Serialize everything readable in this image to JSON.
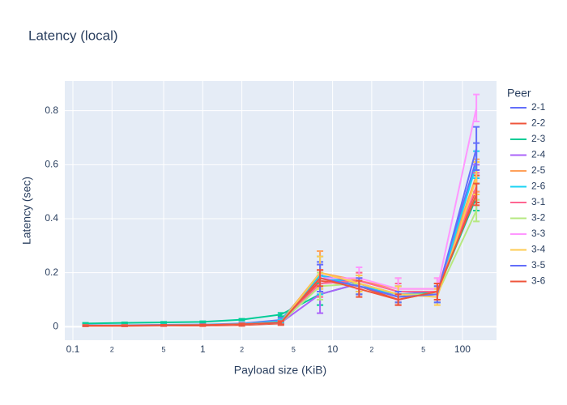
{
  "chart_data": {
    "type": "line",
    "title": "Latency (local)",
    "x_label": "Payload size (KiB)",
    "y_label": "Latency (sec)",
    "legend_title": "Peer",
    "x": [
      0.125,
      0.25,
      0.5,
      1,
      2,
      4,
      8,
      16,
      32,
      64,
      128
    ],
    "xlim": [
      0.0866,
      183
    ],
    "xlog": true,
    "xticks": [
      0.1,
      {
        "value": 0.2,
        "label": "2"
      },
      {
        "value": 0.5,
        "label": "5"
      },
      1,
      2,
      5,
      10,
      {
        "value": 20,
        "label": "2"
      },
      {
        "value": 50,
        "label": "5"
      },
      100
    ],
    "ylim": [
      -0.05,
      0.91
    ],
    "yticks": [
      0,
      0.2,
      0.4,
      0.6,
      0.8
    ],
    "grid": true,
    "series": [
      {
        "name": "2-1",
        "color": "#636efa",
        "values": [
          0.005,
          0.006,
          0.007,
          0.008,
          0.012,
          0.025,
          0.19,
          0.16,
          0.12,
          0.13,
          0.62
        ],
        "errors": [
          0.002,
          0.002,
          0.002,
          0.002,
          0.003,
          0.008,
          0.05,
          0.03,
          0.03,
          0.03,
          0.06
        ]
      },
      {
        "name": "2-2",
        "color": "#EF553B",
        "values": [
          0.003,
          0.003,
          0.004,
          0.004,
          0.006,
          0.012,
          0.17,
          0.15,
          0.1,
          0.13,
          0.51
        ],
        "errors": [
          0.002,
          0.002,
          0.002,
          0.002,
          0.003,
          0.006,
          0.04,
          0.03,
          0.02,
          0.03,
          0.05
        ]
      },
      {
        "name": "2-3",
        "color": "#00cc96",
        "values": [
          0.012,
          0.014,
          0.016,
          0.018,
          0.026,
          0.045,
          0.12,
          0.16,
          0.11,
          0.13,
          0.48
        ],
        "errors": [
          0.002,
          0.002,
          0.002,
          0.002,
          0.003,
          0.006,
          0.04,
          0.03,
          0.02,
          0.03,
          0.05
        ]
      },
      {
        "name": "2-4",
        "color": "#ab63fa",
        "values": [
          0.004,
          0.005,
          0.006,
          0.007,
          0.01,
          0.015,
          0.12,
          0.16,
          0.11,
          0.12,
          0.55
        ],
        "errors": [
          0.002,
          0.002,
          0.002,
          0.002,
          0.003,
          0.006,
          0.07,
          0.03,
          0.02,
          0.03,
          0.05
        ]
      },
      {
        "name": "2-5",
        "color": "#FFA15A",
        "values": [
          0.004,
          0.005,
          0.006,
          0.007,
          0.01,
          0.02,
          0.2,
          0.17,
          0.14,
          0.14,
          0.56
        ],
        "errors": [
          0.002,
          0.002,
          0.002,
          0.002,
          0.003,
          0.006,
          0.08,
          0.03,
          0.04,
          0.04,
          0.06
        ]
      },
      {
        "name": "2-6",
        "color": "#19d3f3",
        "values": [
          0.004,
          0.005,
          0.006,
          0.007,
          0.01,
          0.02,
          0.19,
          0.15,
          0.12,
          0.12,
          0.6
        ],
        "errors": [
          0.002,
          0.002,
          0.002,
          0.002,
          0.003,
          0.006,
          0.07,
          0.03,
          0.03,
          0.03,
          0.05
        ]
      },
      {
        "name": "3-1",
        "color": "#FF6692",
        "values": [
          0.004,
          0.004,
          0.005,
          0.006,
          0.009,
          0.015,
          0.16,
          0.17,
          0.13,
          0.13,
          0.52
        ],
        "errors": [
          0.002,
          0.002,
          0.002,
          0.002,
          0.003,
          0.006,
          0.05,
          0.03,
          0.03,
          0.03,
          0.05
        ]
      },
      {
        "name": "3-2",
        "color": "#B6E880",
        "values": [
          0.004,
          0.004,
          0.005,
          0.006,
          0.009,
          0.015,
          0.15,
          0.16,
          0.12,
          0.12,
          0.43
        ],
        "errors": [
          0.002,
          0.002,
          0.002,
          0.002,
          0.003,
          0.006,
          0.05,
          0.03,
          0.03,
          0.03,
          0.04
        ]
      },
      {
        "name": "3-3",
        "color": "#FF97FF",
        "values": [
          0.004,
          0.004,
          0.005,
          0.006,
          0.009,
          0.015,
          0.18,
          0.18,
          0.14,
          0.14,
          0.81
        ],
        "errors": [
          0.002,
          0.002,
          0.002,
          0.002,
          0.003,
          0.006,
          0.05,
          0.04,
          0.04,
          0.04,
          0.05
        ]
      },
      {
        "name": "3-4",
        "color": "#FECB52",
        "values": [
          0.004,
          0.004,
          0.005,
          0.006,
          0.009,
          0.015,
          0.2,
          0.16,
          0.12,
          0.11,
          0.55
        ],
        "errors": [
          0.002,
          0.002,
          0.002,
          0.002,
          0.003,
          0.006,
          0.06,
          0.03,
          0.03,
          0.03,
          0.06
        ]
      },
      {
        "name": "3-5",
        "color": "#636efa",
        "values": [
          0.004,
          0.004,
          0.005,
          0.006,
          0.009,
          0.015,
          0.18,
          0.15,
          0.11,
          0.12,
          0.66
        ],
        "errors": [
          0.002,
          0.002,
          0.002,
          0.002,
          0.003,
          0.006,
          0.05,
          0.03,
          0.02,
          0.03,
          0.08
        ]
      },
      {
        "name": "3-6",
        "color": "#EF553B",
        "values": [
          0.004,
          0.004,
          0.005,
          0.006,
          0.009,
          0.015,
          0.18,
          0.14,
          0.1,
          0.13,
          0.49
        ],
        "errors": [
          0.002,
          0.002,
          0.002,
          0.002,
          0.003,
          0.006,
          0.03,
          0.03,
          0.02,
          0.03,
          0.04
        ]
      }
    ]
  }
}
